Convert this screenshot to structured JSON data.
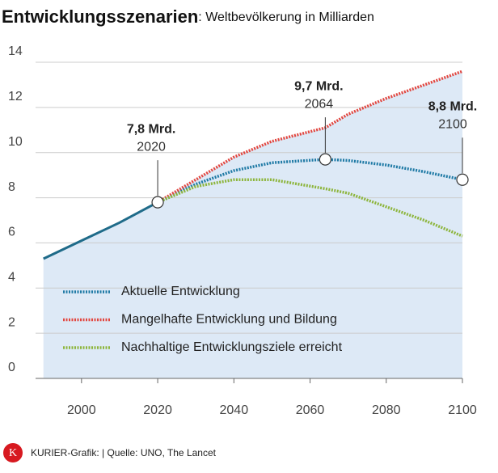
{
  "chart_data": {
    "type": "line",
    "title": "Entwicklungsszenarien",
    "subtitle": ": Weltbevölkerung in Milliarden",
    "x": [
      1990,
      2000,
      2010,
      2020,
      2030,
      2040,
      2050,
      2064,
      2070,
      2080,
      2090,
      2100
    ],
    "xlim": [
      1989,
      2100
    ],
    "xticks": [
      2000,
      2020,
      2040,
      2060,
      2080,
      2100
    ],
    "ylim": [
      0,
      14
    ],
    "yticks": [
      0,
      2,
      4,
      6,
      8,
      10,
      12,
      14
    ],
    "grid": true,
    "area_color": "#dde9f6",
    "series": [
      {
        "color": "#1f6b89",
        "values": [
          5.3,
          6.1,
          6.9,
          7.8,
          null,
          null,
          null,
          null,
          null,
          null,
          null,
          null
        ]
      },
      {
        "name": "Aktuelle Entwicklung",
        "color": "#1f7aa5",
        "values": [
          null,
          null,
          null,
          7.8,
          8.6,
          9.2,
          9.55,
          9.7,
          9.65,
          9.45,
          9.15,
          8.8
        ]
      },
      {
        "name": "Mangelhafte Entwicklung und Bildung",
        "color": "#e2463f",
        "values": [
          null,
          null,
          null,
          7.8,
          8.8,
          9.8,
          10.5,
          11.1,
          11.7,
          12.4,
          13.0,
          13.6
        ]
      },
      {
        "name": "Nachhaltige Entwicklungsziele erreicht",
        "color": "#8db53c",
        "values": [
          null,
          null,
          null,
          7.8,
          8.5,
          8.8,
          8.8,
          8.4,
          8.2,
          7.6,
          7.0,
          6.3
        ]
      }
    ],
    "annotations": [
      {
        "x": 2020,
        "y": 7.8,
        "label": "7,8 Mrd.",
        "x_label": "2020"
      },
      {
        "x": 2064,
        "y": 9.7,
        "label": "9,7 Mrd.",
        "x_label": "2064"
      },
      {
        "x": 2100,
        "y": 8.8,
        "label": "8,8 Mrd.",
        "x_label": "2100"
      }
    ],
    "footer": {
      "brand": "K",
      "source": "KURIER-Grafik:  | Quelle: UNO, The Lancet"
    }
  }
}
